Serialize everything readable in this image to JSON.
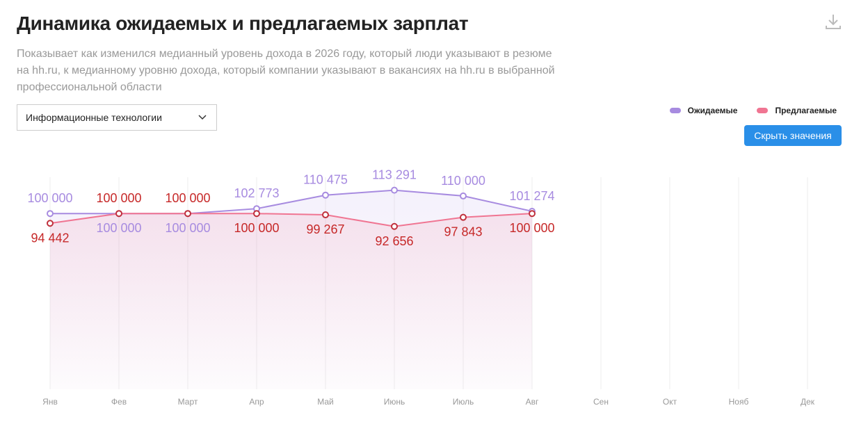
{
  "title": "Динамика ожидаемых и предлагаемых зарплат",
  "subtitle": "Показывает как изменился медианный уровень дохода в 2026 году, который люди указывают в резюме на hh.ru, к медианному уровню дохода, который компании указывают в вакансиях на hh.ru в выбранной профессиональной области",
  "dropdown": "Информационные технологии",
  "button": "Скрыть значения",
  "chart_data": {
    "type": "line",
    "categories": [
      "Янв",
      "Фев",
      "Март",
      "Апр",
      "Май",
      "Июнь",
      "Июль",
      "Авг",
      "Сен",
      "Окт",
      "Нояб",
      "Дек"
    ],
    "series": [
      {
        "name": "Ожидаемые",
        "color": "#a78be0",
        "values": [
          100000,
          100000,
          100000,
          102773,
          110475,
          113291,
          110000,
          101274,
          null,
          null,
          null,
          null
        ],
        "value_labels": [
          "100 000",
          "100 000",
          "100 000",
          "102 773",
          "110 475",
          "113 291",
          "110 000",
          "101 274",
          null,
          null,
          null,
          null
        ]
      },
      {
        "name": "Предлагаемые",
        "color": "#f07592",
        "values": [
          94442,
          100000,
          100000,
          100000,
          99267,
          92656,
          97843,
          100000,
          null,
          null,
          null,
          null
        ],
        "value_labels": [
          "94 442",
          "100 000",
          "100 000",
          "100 000",
          "99 267",
          "92 656",
          "97 843",
          "100 000",
          null,
          null,
          null,
          null
        ]
      }
    ],
    "ylim": [
      0,
      125000
    ],
    "grid": true,
    "legend": "top-right"
  }
}
